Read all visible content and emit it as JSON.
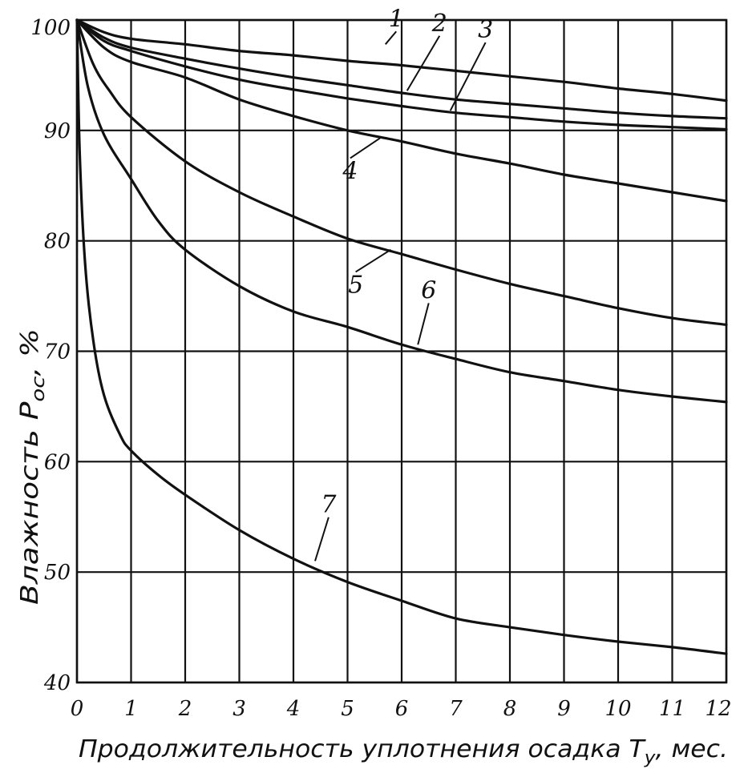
{
  "chart_data": {
    "type": "line",
    "xlabel": "Продолжительность уплотнения осадка Т",
    "xlabel_subscript": "у",
    "xlabel_suffix": ", мес.",
    "ylabel": "Влажность Р",
    "ylabel_subscript": "ос",
    "ylabel_suffix": ", %",
    "xlim": [
      0,
      12
    ],
    "ylim": [
      40,
      100
    ],
    "x_ticks": [
      "0",
      "1",
      "2",
      "3",
      "4",
      "5",
      "6",
      "7",
      "8",
      "9",
      "10",
      "11",
      "12"
    ],
    "y_ticks": [
      "40",
      "50",
      "60",
      "70",
      "80",
      "90",
      "100"
    ],
    "grid": true,
    "series": [
      {
        "name": "1",
        "x": [
          0,
          0.5,
          1,
          2,
          3,
          4,
          5,
          6,
          7,
          8,
          9,
          10,
          11,
          12
        ],
        "y": [
          100,
          98.9,
          98.3,
          97.8,
          97.2,
          96.8,
          96.3,
          95.9,
          95.4,
          94.9,
          94.4,
          93.8,
          93.3,
          92.7
        ]
      },
      {
        "name": "2",
        "x": [
          0,
          0.5,
          1,
          2,
          3,
          4,
          5,
          6,
          7,
          8,
          9,
          10,
          11,
          12
        ],
        "y": [
          100,
          98.4,
          97.5,
          96.5,
          95.6,
          94.8,
          94.1,
          93.4,
          92.8,
          92.4,
          92.0,
          91.6,
          91.3,
          91.1
        ]
      },
      {
        "name": "3",
        "x": [
          0,
          0.5,
          1,
          2,
          3,
          4,
          5,
          6,
          7,
          8,
          9,
          10,
          11,
          12
        ],
        "y": [
          100,
          98.1,
          97.2,
          95.8,
          94.6,
          93.7,
          92.9,
          92.2,
          91.6,
          91.2,
          90.8,
          90.5,
          90.3,
          90.1
        ]
      },
      {
        "name": "4",
        "x": [
          0,
          0.5,
          1,
          2,
          3,
          4,
          5,
          6,
          7,
          8,
          9,
          10,
          11,
          12
        ],
        "y": [
          100,
          97.5,
          96.2,
          94.8,
          92.8,
          91.3,
          90.0,
          89.0,
          87.9,
          87.0,
          86.0,
          85.2,
          84.4,
          83.6
        ]
      },
      {
        "name": "5",
        "x": [
          0,
          0.3,
          0.6,
          1,
          2,
          3,
          4,
          5,
          6,
          7,
          8,
          9,
          10,
          11,
          12
        ],
        "y": [
          100,
          96.0,
          93.6,
          91.2,
          87.2,
          84.4,
          82.2,
          80.2,
          78.8,
          77.4,
          76.1,
          75.0,
          73.9,
          73.0,
          72.4
        ]
      },
      {
        "name": "6",
        "x": [
          0,
          0.2,
          0.5,
          1,
          1.5,
          2,
          3,
          4,
          5,
          6,
          7,
          8,
          9,
          10,
          11,
          12
        ],
        "y": [
          100,
          94.0,
          89.6,
          85.6,
          81.8,
          79.2,
          75.9,
          73.6,
          72.2,
          70.6,
          69.3,
          68.1,
          67.3,
          66.5,
          65.9,
          65.4
        ]
      },
      {
        "name": "7",
        "x": [
          0,
          0.05,
          0.15,
          0.3,
          0.5,
          0.8,
          1,
          1.5,
          2,
          3,
          4,
          5,
          6,
          7,
          8,
          9,
          10,
          11,
          12
        ],
        "y": [
          100,
          88.0,
          78.0,
          71.0,
          66.0,
          62.4,
          61.0,
          58.8,
          57.0,
          53.8,
          51.2,
          49.1,
          47.4,
          45.8,
          45.0,
          44.3,
          43.7,
          43.2,
          42.6
        ]
      }
    ]
  }
}
